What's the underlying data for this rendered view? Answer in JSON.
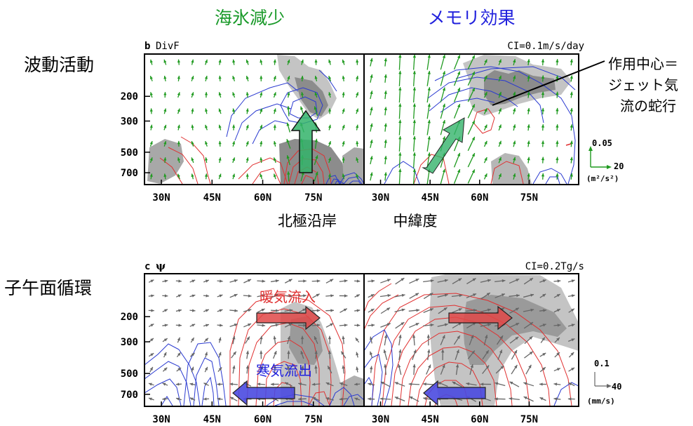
{
  "colors": {
    "sea_ice": "#1a9a2a",
    "memory": "#2222dd",
    "pos_contour": "#e03030",
    "neg_contour": "#2a3ad0",
    "shade_dark": "#8c8c8c",
    "shade_light": "#c4c4c4",
    "divf_vector": "#1f9a1f",
    "psi_vector": "#666666",
    "big_green_arrow": "#33b36a",
    "big_red_arrow": "#e04848",
    "big_blue_arrow": "#4a4ae0"
  },
  "headers": {
    "sea_ice": "海氷減少",
    "memory": "メモリ効果"
  },
  "row_labels": {
    "wave": "波動活動",
    "circ": "子午面循環"
  },
  "annotations": {
    "center": [
      "作用中心＝",
      "ジェット気",
      "流の蛇行"
    ],
    "arctic": "北極沿岸",
    "midlat": "中緯度",
    "warm": "暖気流入",
    "cold": "寒気流出"
  },
  "chart_data": [
    {
      "type": "vector-contour",
      "panel": "b",
      "title": "DivF",
      "contour_interval": "CI=0.1m/s/day",
      "yticks": [
        200,
        300,
        500,
        700
      ],
      "xticks": [
        "30N",
        "45N",
        "60N",
        "75N"
      ],
      "xlim": [
        25,
        90
      ],
      "ylim": [
        100,
        850
      ],
      "y_scale": "log",
      "subpanels": [
        "海氷減少",
        "メモリ効果"
      ],
      "vector_scale": {
        "vertical": "0.05",
        "horizontal": "20",
        "unit": "(m²/s²)"
      }
    },
    {
      "type": "vector-contour",
      "panel": "c",
      "title": "ψ",
      "contour_interval": "CI=0.2Tg/s",
      "yticks": [
        200,
        300,
        500,
        700
      ],
      "xticks": [
        "30N",
        "45N",
        "60N",
        "75N"
      ],
      "xlim": [
        25,
        90
      ],
      "ylim": [
        100,
        850
      ],
      "y_scale": "log",
      "subpanels": [
        "海氷減少",
        "メモリ効果"
      ],
      "vector_scale": {
        "vertical": "0.1",
        "horizontal": "40",
        "unit": "(mm/s)"
      }
    }
  ]
}
